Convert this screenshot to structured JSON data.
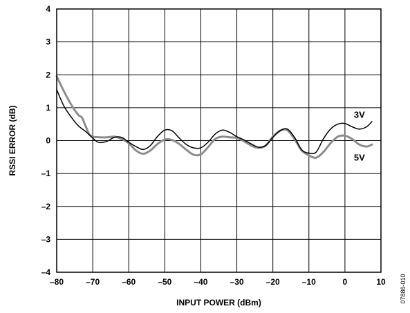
{
  "chart_data": {
    "type": "line",
    "title": "",
    "xlabel": "INPUT POWER (dBm)",
    "ylabel": "RSSI ERROR (dB)",
    "xlim": [
      -80,
      10
    ],
    "ylim": [
      -4,
      4
    ],
    "x_ticks": [
      -80,
      -70,
      -60,
      -50,
      -40,
      -30,
      -20,
      -10,
      0,
      10
    ],
    "y_ticks": [
      -4,
      -3,
      -2,
      -1,
      0,
      1,
      2,
      3,
      4
    ],
    "x_tick_labels": [
      "–80",
      "–70",
      "–60",
      "–50",
      "–40",
      "–30",
      "–20",
      "–10",
      "0",
      "10"
    ],
    "y_tick_labels": [
      "–4",
      "–3",
      "–2",
      "–1",
      "0",
      "1",
      "2",
      "3",
      "4"
    ],
    "grid": true,
    "series": [
      {
        "name": "3V",
        "color": "#000000",
        "x": [
          -80,
          -78,
          -76,
          -74,
          -72,
          -70,
          -69,
          -68,
          -66,
          -64,
          -62,
          -60,
          -58,
          -56,
          -54,
          -52,
          -50,
          -48,
          -46,
          -44,
          -42,
          -40,
          -38,
          -36,
          -34,
          -32,
          -30,
          -28,
          -26,
          -24,
          -22,
          -20,
          -18,
          -16,
          -14,
          -12,
          -10,
          -8,
          -6,
          -4,
          -2,
          0,
          2,
          4,
          6,
          7.5
        ],
        "values": [
          1.55,
          1.05,
          0.72,
          0.45,
          0.28,
          0.08,
          -0.02,
          -0.06,
          -0.02,
          0.1,
          0.1,
          -0.05,
          -0.18,
          -0.27,
          -0.15,
          0.13,
          0.32,
          0.3,
          0.08,
          -0.12,
          -0.22,
          -0.22,
          -0.05,
          0.2,
          0.32,
          0.25,
          0.12,
          0.02,
          -0.1,
          -0.2,
          -0.15,
          0.1,
          0.3,
          0.35,
          0.1,
          -0.28,
          -0.38,
          -0.35,
          0.05,
          0.35,
          0.5,
          0.52,
          0.42,
          0.35,
          0.42,
          0.58
        ]
      },
      {
        "name": "5V",
        "color": "#8c8c8c",
        "x": [
          -80,
          -78,
          -76,
          -74,
          -73,
          -72,
          -71,
          -70,
          -68,
          -66,
          -64,
          -62,
          -60,
          -58,
          -56,
          -54,
          -52,
          -50,
          -48,
          -46,
          -44,
          -42,
          -40,
          -38,
          -36,
          -34,
          -32,
          -30,
          -28,
          -26,
          -24,
          -22,
          -20,
          -18,
          -16,
          -14,
          -12,
          -10,
          -8,
          -6,
          -4,
          -2,
          0,
          2,
          4,
          6,
          7.5
        ],
        "values": [
          1.95,
          1.5,
          1.1,
          0.78,
          0.7,
          0.45,
          0.2,
          0.12,
          0.1,
          0.1,
          0.12,
          0.05,
          -0.08,
          -0.3,
          -0.4,
          -0.3,
          -0.1,
          0.03,
          0.02,
          -0.1,
          -0.28,
          -0.43,
          -0.42,
          -0.2,
          0.05,
          0.12,
          0.1,
          0.08,
          -0.02,
          -0.15,
          -0.22,
          -0.15,
          0.12,
          0.3,
          0.32,
          0.05,
          -0.3,
          -0.45,
          -0.52,
          -0.35,
          -0.08,
          0.12,
          0.15,
          0.05,
          -0.12,
          -0.18,
          -0.12
        ]
      }
    ],
    "annotations": [
      {
        "text": "3V",
        "x": 2.5,
        "y": 0.8
      },
      {
        "text": "5V",
        "x": 2.5,
        "y": -0.5
      }
    ]
  },
  "figure_id": "07886-010"
}
